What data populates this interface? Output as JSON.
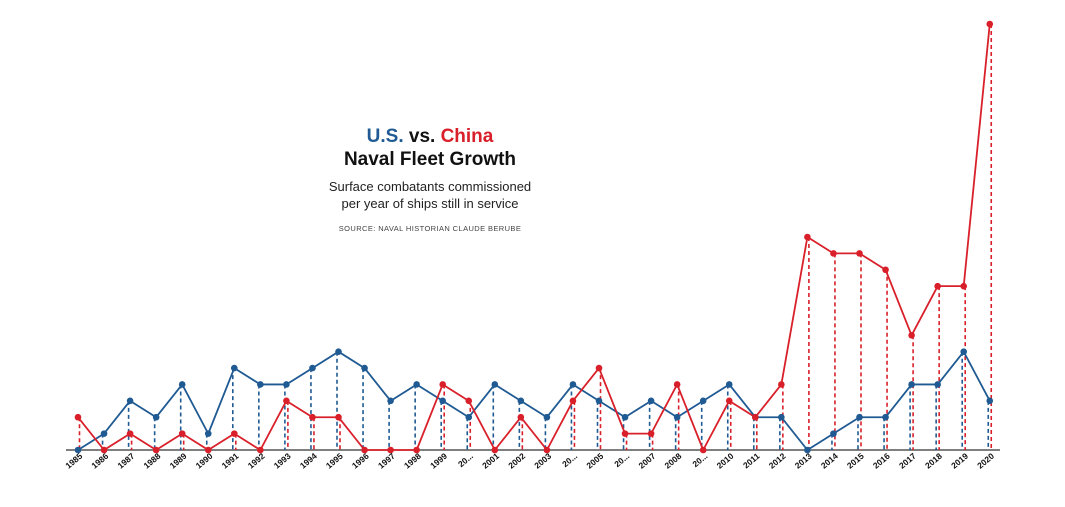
{
  "colors": {
    "us": "#1f5a93",
    "china": "#d9202a",
    "axis": "#333333",
    "text": "#111111"
  },
  "title": {
    "part1": "U.S.",
    "vs": " vs. ",
    "part2": "China",
    "line2": "Naval Fleet Growth"
  },
  "subtitle_line1": "Surface combatants commissioned",
  "subtitle_line2": "per year of ships still in service",
  "source": "SOURCE: NAVAL HISTORIAN CLAUDE BERUBE",
  "chart_data": {
    "type": "line",
    "title": "U.S. vs. China Naval Fleet Growth",
    "subtitle": "Surface combatants commissioned per year of ships still in service",
    "x": [
      "1985",
      "1986",
      "1987",
      "1988",
      "1989",
      "1990",
      "1991",
      "1992",
      "1993",
      "1994",
      "1995",
      "1996",
      "1997",
      "1998",
      "1999",
      "20...",
      "2001",
      "2002",
      "2003",
      "20...",
      "2005",
      "20...",
      "2007",
      "2008",
      "20...",
      "2010",
      "2011",
      "2012",
      "2013",
      "2014",
      "2015",
      "2016",
      "2017",
      "2018",
      "2019",
      "2020"
    ],
    "series": [
      {
        "name": "U.S.",
        "color": "#1f5a93",
        "values": [
          0,
          1,
          3,
          2,
          4,
          1,
          5,
          4,
          4,
          5,
          6,
          5,
          3,
          4,
          3,
          2,
          4,
          3,
          2,
          4,
          3,
          2,
          3,
          2,
          3,
          4,
          2,
          2,
          0,
          1,
          2,
          2,
          4,
          4,
          6,
          3
        ]
      },
      {
        "name": "China",
        "color": "#d9202a",
        "values": [
          2,
          0,
          1,
          0,
          1,
          0,
          1,
          0,
          3,
          2,
          2,
          0,
          0,
          0,
          4,
          3,
          0,
          2,
          0,
          3,
          5,
          1,
          1,
          4,
          0,
          3,
          2,
          4,
          13,
          12,
          12,
          11,
          7,
          10,
          10,
          26
        ]
      }
    ],
    "ylim": [
      0,
      26
    ],
    "grid": false,
    "legend": "none"
  }
}
